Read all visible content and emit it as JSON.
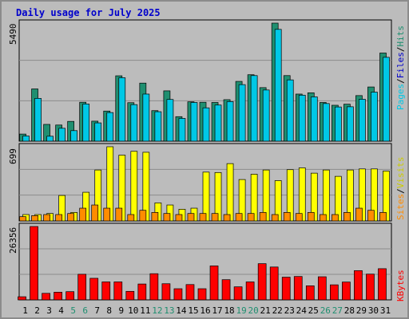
{
  "title": "Daily usage for July 2025",
  "colors": {
    "background": "#bcbcbc",
    "title": "#0000cc",
    "hits": "#1f8f70",
    "files": "#00c8e6",
    "pages": "#00c8e6",
    "visits": "#ffff00",
    "sites": "#ff8c00",
    "kbytes": "#ff0000",
    "weekend_label": "#1f8f70"
  },
  "panels": {
    "top": {
      "max_label": "5490",
      "legend": [
        "Pages",
        "Files",
        "Hits"
      ]
    },
    "middle": {
      "max_label": "699",
      "legend": [
        "Sites",
        "Visits"
      ]
    },
    "bottom": {
      "max_label": "26356",
      "legend": [
        "KBytes"
      ]
    }
  },
  "chart_data": [
    {
      "type": "bar",
      "panel": "hits-files-pages",
      "ylim": [
        0,
        5490
      ],
      "categories": [
        "1",
        "2",
        "3",
        "4",
        "5",
        "6",
        "7",
        "8",
        "9",
        "10",
        "11",
        "12",
        "13",
        "14",
        "15",
        "16",
        "17",
        "18",
        "19",
        "20",
        "21",
        "22",
        "23",
        "24",
        "25",
        "26",
        "27",
        "28",
        "29",
        "30",
        "31"
      ],
      "series": [
        {
          "name": "Hits",
          "values": [
            330,
            2430,
            780,
            750,
            920,
            1810,
            930,
            1400,
            3040,
            1790,
            2700,
            1420,
            2340,
            1140,
            1830,
            1810,
            1800,
            1930,
            2780,
            3090,
            2490,
            5490,
            3050,
            2190,
            2250,
            1800,
            1670,
            1720,
            2120,
            2520,
            4100
          ]
        },
        {
          "name": "Files",
          "values": [
            240,
            1990,
            230,
            600,
            490,
            1730,
            850,
            1330,
            2950,
            1700,
            2190,
            1370,
            1940,
            1060,
            1800,
            1550,
            1680,
            1840,
            2630,
            3050,
            2380,
            5200,
            2850,
            2140,
            2060,
            1750,
            1590,
            1600,
            1950,
            2280,
            3900
          ]
        }
      ]
    },
    {
      "type": "bar",
      "panel": "visits-sites",
      "ylim": [
        0,
        699
      ],
      "categories": [
        "1",
        "2",
        "3",
        "4",
        "5",
        "6",
        "7",
        "8",
        "9",
        "10",
        "11",
        "12",
        "13",
        "14",
        "15",
        "16",
        "17",
        "18",
        "19",
        "20",
        "21",
        "22",
        "23",
        "24",
        "25",
        "26",
        "27",
        "28",
        "29",
        "30",
        "31"
      ],
      "series": [
        {
          "name": "Visits",
          "values": [
            60,
            60,
            70,
            240,
            80,
            270,
            480,
            699,
            620,
            656,
            647,
            170,
            150,
            110,
            120,
            460,
            456,
            540,
            390,
            440,
            480,
            380,
            483,
            500,
            450,
            480,
            420,
            480,
            490,
            490,
            470
          ]
        },
        {
          "name": "Sites",
          "values": [
            40,
            50,
            60,
            60,
            70,
            120,
            150,
            120,
            120,
            60,
            100,
            80,
            70,
            60,
            70,
            70,
            70,
            60,
            70,
            70,
            80,
            60,
            80,
            70,
            80,
            60,
            60,
            80,
            120,
            100,
            80
          ]
        }
      ]
    },
    {
      "type": "bar",
      "panel": "kbytes",
      "ylim": [
        0,
        26356
      ],
      "categories": [
        "1",
        "2",
        "3",
        "4",
        "5",
        "6",
        "7",
        "8",
        "9",
        "10",
        "11",
        "12",
        "13",
        "14",
        "15",
        "16",
        "17",
        "18",
        "19",
        "20",
        "21",
        "22",
        "23",
        "24",
        "25",
        "26",
        "27",
        "28",
        "29",
        "30",
        "31"
      ],
      "series": [
        {
          "name": "KBytes",
          "values": [
            1120,
            26356,
            2350,
            2750,
            2950,
            9200,
            7750,
            6450,
            6450,
            3060,
            5700,
            9400,
            5800,
            4000,
            5500,
            4000,
            12200,
            7250,
            4680,
            6450,
            13000,
            11800,
            8150,
            8400,
            5050,
            8300,
            5400,
            6400,
            10500,
            9250,
            11200
          ]
        }
      ]
    }
  ],
  "x_labels": {
    "days": [
      "1",
      "2",
      "3",
      "4",
      "5",
      "6",
      "7",
      "8",
      "9",
      "10",
      "11",
      "12",
      "13",
      "14",
      "15",
      "16",
      "17",
      "18",
      "19",
      "20",
      "21",
      "22",
      "23",
      "24",
      "25",
      "26",
      "27",
      "28",
      "29",
      "30",
      "31"
    ],
    "weekend_days": [
      "5",
      "6",
      "12",
      "13",
      "19",
      "20",
      "26",
      "27"
    ]
  }
}
